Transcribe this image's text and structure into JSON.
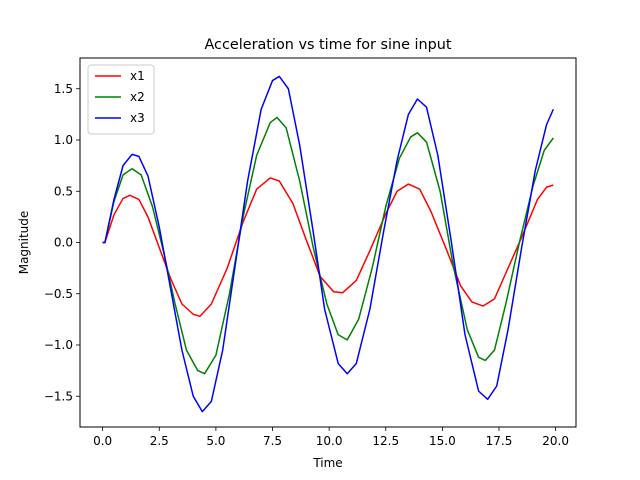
{
  "chart_data": {
    "type": "line",
    "title": "Acceleration vs time for sine input",
    "xlabel": "Time",
    "ylabel": "Magnitude",
    "xlim": [
      -1.0,
      20.9
    ],
    "ylim": [
      -1.8,
      1.8
    ],
    "xticks": [
      0.0,
      2.5,
      5.0,
      7.5,
      10.0,
      12.5,
      15.0,
      17.5,
      20.0
    ],
    "xtick_labels": [
      "0.0",
      "2.5",
      "5.0",
      "7.5",
      "10.0",
      "12.5",
      "15.0",
      "17.5",
      "20.0"
    ],
    "yticks": [
      -1.5,
      -1.0,
      -0.5,
      0.0,
      0.5,
      1.0,
      1.5
    ],
    "ytick_labels": [
      "−1.5",
      "−1.0",
      "−0.5",
      "0.0",
      "0.5",
      "1.0",
      "1.5"
    ],
    "grid": false,
    "legend_position": "top-left",
    "series": [
      {
        "name": "x1",
        "color": "#ff0000",
        "points": [
          [
            0,
            0
          ],
          [
            0.1,
            0
          ],
          [
            0.5,
            0.27
          ],
          [
            0.9,
            0.43
          ],
          [
            1.2,
            0.46
          ],
          [
            1.6,
            0.42
          ],
          [
            2.0,
            0.25
          ],
          [
            2.5,
            -0.05
          ],
          [
            3.0,
            -0.35
          ],
          [
            3.5,
            -0.6
          ],
          [
            4.0,
            -0.7
          ],
          [
            4.3,
            -0.72
          ],
          [
            4.8,
            -0.6
          ],
          [
            5.5,
            -0.25
          ],
          [
            6.2,
            0.2
          ],
          [
            6.8,
            0.52
          ],
          [
            7.4,
            0.63
          ],
          [
            7.8,
            0.6
          ],
          [
            8.4,
            0.38
          ],
          [
            9.0,
            0.02
          ],
          [
            9.6,
            -0.33
          ],
          [
            10.2,
            -0.48
          ],
          [
            10.6,
            -0.49
          ],
          [
            11.2,
            -0.37
          ],
          [
            11.8,
            -0.08
          ],
          [
            12.5,
            0.28
          ],
          [
            13.0,
            0.5
          ],
          [
            13.5,
            0.57
          ],
          [
            14.0,
            0.52
          ],
          [
            14.5,
            0.3
          ],
          [
            15.2,
            -0.08
          ],
          [
            15.8,
            -0.42
          ],
          [
            16.3,
            -0.58
          ],
          [
            16.8,
            -0.62
          ],
          [
            17.3,
            -0.55
          ],
          [
            17.8,
            -0.3
          ],
          [
            18.5,
            0.05
          ],
          [
            19.2,
            0.42
          ],
          [
            19.6,
            0.54
          ],
          [
            19.9,
            0.56
          ]
        ]
      },
      {
        "name": "x2",
        "color": "#008000",
        "points": [
          [
            0,
            0
          ],
          [
            0.1,
            0
          ],
          [
            0.5,
            0.4
          ],
          [
            0.9,
            0.66
          ],
          [
            1.3,
            0.72
          ],
          [
            1.7,
            0.66
          ],
          [
            2.2,
            0.35
          ],
          [
            2.7,
            -0.1
          ],
          [
            3.2,
            -0.6
          ],
          [
            3.7,
            -1.05
          ],
          [
            4.2,
            -1.25
          ],
          [
            4.5,
            -1.28
          ],
          [
            5.0,
            -1.1
          ],
          [
            5.6,
            -0.5
          ],
          [
            6.2,
            0.25
          ],
          [
            6.8,
            0.85
          ],
          [
            7.4,
            1.17
          ],
          [
            7.7,
            1.22
          ],
          [
            8.1,
            1.12
          ],
          [
            8.7,
            0.6
          ],
          [
            9.3,
            -0.05
          ],
          [
            9.9,
            -0.6
          ],
          [
            10.4,
            -0.9
          ],
          [
            10.8,
            -0.95
          ],
          [
            11.3,
            -0.75
          ],
          [
            11.9,
            -0.25
          ],
          [
            12.5,
            0.35
          ],
          [
            13.1,
            0.82
          ],
          [
            13.6,
            1.03
          ],
          [
            13.9,
            1.07
          ],
          [
            14.3,
            0.98
          ],
          [
            14.9,
            0.5
          ],
          [
            15.5,
            -0.25
          ],
          [
            16.1,
            -0.85
          ],
          [
            16.6,
            -1.12
          ],
          [
            16.9,
            -1.15
          ],
          [
            17.3,
            -1.05
          ],
          [
            17.8,
            -0.6
          ],
          [
            18.4,
            0.0
          ],
          [
            19.0,
            0.55
          ],
          [
            19.5,
            0.9
          ],
          [
            19.9,
            1.02
          ]
        ]
      },
      {
        "name": "x3",
        "color": "#0000ff",
        "points": [
          [
            0,
            0
          ],
          [
            0.1,
            0
          ],
          [
            0.5,
            0.42
          ],
          [
            0.9,
            0.75
          ],
          [
            1.3,
            0.86
          ],
          [
            1.6,
            0.84
          ],
          [
            2.0,
            0.65
          ],
          [
            2.5,
            0.15
          ],
          [
            3.0,
            -0.45
          ],
          [
            3.5,
            -1.05
          ],
          [
            4.0,
            -1.5
          ],
          [
            4.4,
            -1.65
          ],
          [
            4.8,
            -1.55
          ],
          [
            5.3,
            -1.05
          ],
          [
            5.8,
            -0.3
          ],
          [
            6.4,
            0.6
          ],
          [
            7.0,
            1.3
          ],
          [
            7.5,
            1.58
          ],
          [
            7.8,
            1.62
          ],
          [
            8.2,
            1.5
          ],
          [
            8.7,
            0.95
          ],
          [
            9.3,
            0.1
          ],
          [
            9.8,
            -0.65
          ],
          [
            10.4,
            -1.18
          ],
          [
            10.8,
            -1.28
          ],
          [
            11.2,
            -1.18
          ],
          [
            11.8,
            -0.65
          ],
          [
            12.4,
            0.1
          ],
          [
            13.0,
            0.8
          ],
          [
            13.5,
            1.25
          ],
          [
            13.9,
            1.4
          ],
          [
            14.3,
            1.32
          ],
          [
            14.8,
            0.85
          ],
          [
            15.4,
            0.0
          ],
          [
            16.0,
            -0.9
          ],
          [
            16.6,
            -1.45
          ],
          [
            17.0,
            -1.53
          ],
          [
            17.4,
            -1.4
          ],
          [
            17.9,
            -0.85
          ],
          [
            18.5,
            -0.05
          ],
          [
            19.1,
            0.7
          ],
          [
            19.6,
            1.15
          ],
          [
            19.9,
            1.3
          ]
        ]
      }
    ]
  }
}
